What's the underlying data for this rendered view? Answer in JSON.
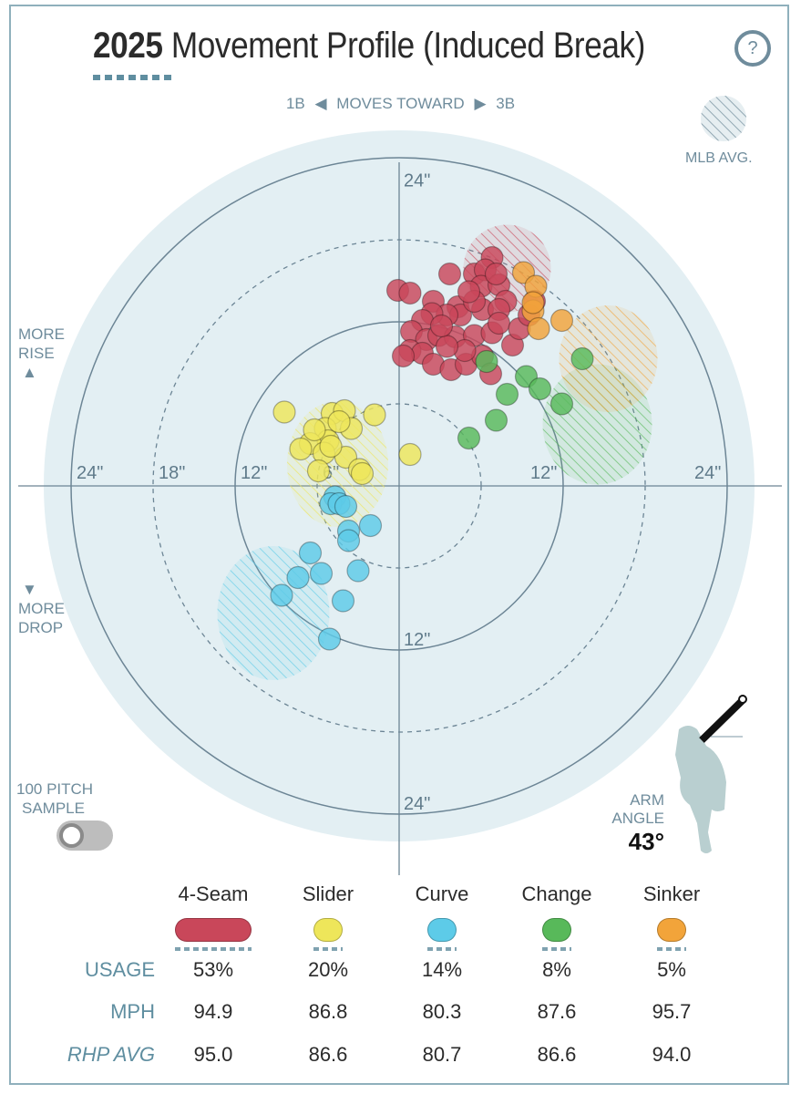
{
  "header": {
    "title_year": "2025",
    "title_rest": "Movement Profile (Induced Break)",
    "help_label": "?",
    "direction_left": "1B",
    "direction_center": "MOVES TOWARD",
    "direction_right": "3B",
    "more_rise": [
      "MORE",
      "RISE"
    ],
    "more_drop": [
      "MORE",
      "DROP"
    ],
    "mlb_avg_label": "MLB AVG."
  },
  "controls": {
    "sample_label": [
      "100 PITCH",
      "SAMPLE"
    ],
    "sample_toggle_on": false
  },
  "arm_angle": {
    "label": [
      "ARM",
      "ANGLE"
    ],
    "value": "43°"
  },
  "chart_data": {
    "type": "scatter",
    "title": "2025 Movement Profile (Induced Break)",
    "xlabel": "1B ◀ MOVES TOWARD ▶ 3B",
    "ylabel": "MORE RISE / MORE DROP",
    "units": "inches",
    "rings": [
      6,
      12,
      18,
      24
    ],
    "ring_labels": {
      "top": [
        "24\""
      ],
      "left": [
        "24\"",
        "18\"",
        "12\"",
        "6\""
      ],
      "right": [
        "12\"",
        "24\""
      ],
      "bottom": [
        "12\"",
        "24\""
      ]
    },
    "xlim": [
      -26,
      26
    ],
    "ylim": [
      -26,
      26
    ],
    "series": [
      {
        "name": "4-Seam",
        "color": "#c9475a",
        "mlb_avg": {
          "x": 7.9,
          "y": 15.9,
          "rx": 3.2,
          "ry": 3.2
        },
        "points": [
          [
            6.8,
            16.7
          ],
          [
            3.7,
            15.5
          ],
          [
            -0.1,
            14.3
          ],
          [
            0.8,
            14.1
          ],
          [
            2.5,
            13.5
          ],
          [
            4.3,
            13.1
          ],
          [
            5.5,
            15.5
          ],
          [
            6.3,
            15.8
          ],
          [
            6.0,
            14.6
          ],
          [
            7.3,
            14.7
          ],
          [
            7.8,
            13.5
          ],
          [
            6.1,
            12.9
          ],
          [
            4.5,
            12.5
          ],
          [
            3.5,
            12.5
          ],
          [
            2.4,
            12.6
          ],
          [
            1.7,
            12.1
          ],
          [
            0.9,
            11.3
          ],
          [
            2.0,
            10.7
          ],
          [
            2.9,
            11.0
          ],
          [
            4.1,
            10.9
          ],
          [
            5.5,
            11.0
          ],
          [
            6.8,
            11.2
          ],
          [
            7.3,
            12.9
          ],
          [
            8.3,
            10.3
          ],
          [
            0.8,
            9.9
          ],
          [
            1.7,
            9.7
          ],
          [
            2.5,
            8.9
          ],
          [
            3.8,
            8.5
          ],
          [
            4.9,
            8.9
          ],
          [
            6.1,
            9.5
          ],
          [
            7.3,
            11.9
          ],
          [
            8.8,
            11.5
          ],
          [
            4.8,
            9.9
          ],
          [
            3.5,
            10.2
          ],
          [
            0.3,
            9.5
          ],
          [
            9.5,
            12.5
          ],
          [
            3.1,
            11.7
          ],
          [
            5.5,
            13.5
          ],
          [
            7.1,
            15.5
          ],
          [
            5.1,
            14.2
          ],
          [
            6.7,
            8.2
          ],
          [
            9.9,
            13.5
          ]
        ]
      },
      {
        "name": "Slider",
        "color": "#eee65a",
        "mlb_avg": {
          "x": -4.5,
          "y": 1.6,
          "rx": 3.7,
          "ry": 4.6
        },
        "points": [
          [
            -8.4,
            5.4
          ],
          [
            -4.9,
            5.3
          ],
          [
            -4.0,
            5.5
          ],
          [
            -1.8,
            5.2
          ],
          [
            -3.5,
            4.2
          ],
          [
            -5.4,
            4.2
          ],
          [
            -5.2,
            3.3
          ],
          [
            -6.5,
            3.1
          ],
          [
            -7.2,
            2.7
          ],
          [
            -5.5,
            2.4
          ],
          [
            -3.9,
            2.1
          ],
          [
            -5.0,
            2.9
          ],
          [
            -5.9,
            1.1
          ],
          [
            -2.9,
            1.2
          ],
          [
            -2.7,
            0.9
          ],
          [
            0.8,
            2.3
          ],
          [
            -4.4,
            4.7
          ],
          [
            -6.2,
            4.1
          ]
        ]
      },
      {
        "name": "Curve",
        "color": "#5dcbe8",
        "mlb_avg": {
          "x": -9.2,
          "y": -9.3,
          "rx": 4.1,
          "ry": 4.9
        },
        "points": [
          [
            -4.7,
            -0.8
          ],
          [
            -5.0,
            -1.3
          ],
          [
            -4.4,
            -1.3
          ],
          [
            -3.9,
            -1.5
          ],
          [
            -2.1,
            -2.9
          ],
          [
            -3.7,
            -3.3
          ],
          [
            -3.7,
            -4.0
          ],
          [
            -6.5,
            -4.9
          ],
          [
            -3.0,
            -6.2
          ],
          [
            -7.4,
            -6.7
          ],
          [
            -5.7,
            -6.4
          ],
          [
            -8.6,
            -8.0
          ],
          [
            -4.1,
            -8.4
          ],
          [
            -5.1,
            -11.2
          ]
        ]
      },
      {
        "name": "Change",
        "color": "#58b95a",
        "mlb_avg": {
          "x": 14.5,
          "y": 4.5,
          "rx": 4.0,
          "ry": 4.4
        },
        "points": [
          [
            6.4,
            9.1
          ],
          [
            9.3,
            8.0
          ],
          [
            7.9,
            6.7
          ],
          [
            10.3,
            7.1
          ],
          [
            11.9,
            6.0
          ],
          [
            13.4,
            9.3
          ],
          [
            7.1,
            4.8
          ],
          [
            5.1,
            3.5
          ]
        ]
      },
      {
        "name": "Sinker",
        "color": "#f2a43a",
        "mlb_avg": {
          "x": 15.3,
          "y": 9.3,
          "rx": 3.6,
          "ry": 3.9
        },
        "points": [
          [
            9.1,
            15.6
          ],
          [
            10.0,
            14.6
          ],
          [
            9.8,
            12.8
          ],
          [
            10.2,
            11.5
          ],
          [
            11.9,
            12.1
          ],
          [
            9.8,
            13.4
          ]
        ]
      }
    ]
  },
  "table": {
    "row_labels": {
      "usage": "USAGE",
      "mph": "MPH",
      "rhp_avg": "RHP AVG"
    },
    "pitches": [
      {
        "name": "4-Seam",
        "color": "#c9475a",
        "usage": "53%",
        "usage_value": 53,
        "mph": "94.9",
        "rhp_avg": "95.0"
      },
      {
        "name": "Slider",
        "color": "#eee65a",
        "usage": "20%",
        "usage_value": 20,
        "mph": "86.8",
        "rhp_avg": "86.6"
      },
      {
        "name": "Curve",
        "color": "#5dcbe8",
        "usage": "14%",
        "usage_value": 14,
        "mph": "80.3",
        "rhp_avg": "80.7"
      },
      {
        "name": "Change",
        "color": "#58b95a",
        "usage": "8%",
        "usage_value": 8,
        "mph": "87.6",
        "rhp_avg": "86.6"
      },
      {
        "name": "Sinker",
        "color": "#f2a43a",
        "usage": "5%",
        "usage_value": 5,
        "mph": "95.7",
        "rhp_avg": "94.0"
      }
    ]
  }
}
